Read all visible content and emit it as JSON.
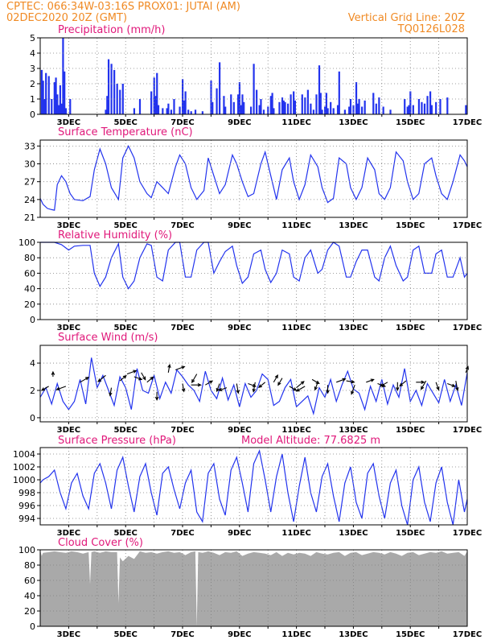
{
  "header": {
    "line1_left": "CPTEC:   066:34W-03:16S   PROX01: JUTAI (AM)",
    "line2_left": "02DEC2020 20Z (GMT)",
    "line1_right": "Vertical Grid Line: 20Z",
    "line2_right": "TQ0126L028"
  },
  "colors": {
    "header": "#f08a24",
    "title": "#e0187a",
    "line": "#2233ee",
    "cloud": "#a9a9a9",
    "grid": "#808080"
  },
  "x_axis": {
    "start_day": 2.0,
    "end_day": 17.0,
    "tick_labels": [
      "3DEC",
      "5DEC",
      "7DEC",
      "9DEC",
      "11DEC",
      "13DEC",
      "15DEC",
      "17DEC"
    ],
    "grid_days": [
      3,
      4,
      5,
      6,
      7,
      8,
      9,
      10,
      11,
      12,
      13,
      14,
      15,
      16
    ]
  },
  "chart_data": [
    {
      "id": "precip",
      "type": "bar",
      "title": "Precipitation (mm/h)",
      "ylim": [
        0,
        5
      ],
      "yticks": [
        "0",
        "1",
        "2",
        "3",
        "4",
        "5"
      ],
      "grid": true,
      "x": [
        2.05,
        2.1,
        2.15,
        2.2,
        2.3,
        2.4,
        2.5,
        2.55,
        2.6,
        2.65,
        2.7,
        2.75,
        2.8,
        2.85,
        2.9,
        3.05,
        4.3,
        4.35,
        4.4,
        4.5,
        4.6,
        4.7,
        4.8,
        4.9,
        5.3,
        5.5,
        5.9,
        6.0,
        6.05,
        6.1,
        6.15,
        6.3,
        6.45,
        6.5,
        6.6,
        6.7,
        6.9,
        7.0,
        7.05,
        7.1,
        7.2,
        7.3,
        7.45,
        7.7,
        8.0,
        8.05,
        8.2,
        8.3,
        8.45,
        8.5,
        8.7,
        8.8,
        8.95,
        9.0,
        9.05,
        9.1,
        9.15,
        9.4,
        9.5,
        9.6,
        9.7,
        9.75,
        9.85,
        10.0,
        10.1,
        10.15,
        10.2,
        10.4,
        10.5,
        10.55,
        10.6,
        10.7,
        10.8,
        10.9,
        10.95,
        11.2,
        11.3,
        11.4,
        11.5,
        11.6,
        11.7,
        11.8,
        11.85,
        11.9,
        12.0,
        12.05,
        12.1,
        12.2,
        12.3,
        12.45,
        12.5,
        12.7,
        12.85,
        12.9,
        13.0,
        13.1,
        13.15,
        13.2,
        13.3,
        13.4,
        13.7,
        13.8,
        13.9,
        14.05,
        14.3,
        14.8,
        14.9,
        14.95,
        15.0,
        15.1,
        15.3,
        15.4,
        15.5,
        15.6,
        15.7,
        15.75,
        15.9,
        16.05,
        16.3,
        16.95
      ],
      "values": [
        2.9,
        2.2,
        1.0,
        2.7,
        2.5,
        1.0,
        2.1,
        2.4,
        1.3,
        0.6,
        1.9,
        0.7,
        5.0,
        2.8,
        0.4,
        1.0,
        0.3,
        1.2,
        3.6,
        3.3,
        2.9,
        2.0,
        1.6,
        2.0,
        0.4,
        1.0,
        1.5,
        2.4,
        1.2,
        2.7,
        0.6,
        0.4,
        0.4,
        0.7,
        0.3,
        1.0,
        0.5,
        2.3,
        0.9,
        1.5,
        0.3,
        0.2,
        0.3,
        0.2,
        2.2,
        0.8,
        1.7,
        3.4,
        1.2,
        0.5,
        1.3,
        0.8,
        1.3,
        2.1,
        0.6,
        1.3,
        0.8,
        0.5,
        3.3,
        1.6,
        0.6,
        1.0,
        0.3,
        0.5,
        1.2,
        1.4,
        0.4,
        0.8,
        1.1,
        0.9,
        0.8,
        0.7,
        1.3,
        1.5,
        0.9,
        1.3,
        1.1,
        1.6,
        0.7,
        0.3,
        1.3,
        3.2,
        1.4,
        0.3,
        0.5,
        1.4,
        0.4,
        0.8,
        0.4,
        0.6,
        2.8,
        0.3,
        0.5,
        1.0,
        0.6,
        2.1,
        0.7,
        1.0,
        0.5,
        0.9,
        1.4,
        0.7,
        1.1,
        0.5,
        0.3,
        1.0,
        0.5,
        0.6,
        1.5,
        0.6,
        1.0,
        0.8,
        0.7,
        1.2,
        1.5,
        0.6,
        0.8,
        1.0,
        1.1,
        0.6
      ]
    },
    {
      "id": "temp",
      "type": "line",
      "title": "Surface Temperature (nC)",
      "ylim": [
        21,
        34
      ],
      "yticks": [
        "21",
        "24",
        "27",
        "30",
        "33"
      ],
      "grid": true,
      "x": [
        2.0,
        2.1,
        2.25,
        2.4,
        2.5,
        2.6,
        2.75,
        2.9,
        3.05,
        3.2,
        3.5,
        3.75,
        3.9,
        4.1,
        4.3,
        4.5,
        4.75,
        4.9,
        5.1,
        5.3,
        5.5,
        5.75,
        5.9,
        6.1,
        6.3,
        6.5,
        6.75,
        6.9,
        7.1,
        7.3,
        7.5,
        7.75,
        7.9,
        8.1,
        8.3,
        8.5,
        8.75,
        8.9,
        9.1,
        9.3,
        9.5,
        9.75,
        9.9,
        10.1,
        10.3,
        10.5,
        10.75,
        10.9,
        11.1,
        11.3,
        11.5,
        11.75,
        11.9,
        12.1,
        12.3,
        12.5,
        12.75,
        12.9,
        13.1,
        13.3,
        13.5,
        13.75,
        13.9,
        14.1,
        14.3,
        14.5,
        14.75,
        14.9,
        15.1,
        15.3,
        15.5,
        15.75,
        15.9,
        16.1,
        16.3,
        16.5,
        16.75,
        16.9,
        17.0
      ],
      "values": [
        24.2,
        23.2,
        22.5,
        22.3,
        22.2,
        26.5,
        28.0,
        27.0,
        25.0,
        24.0,
        23.8,
        24.5,
        29.0,
        32.5,
        30.0,
        26.0,
        24.0,
        31.0,
        33.0,
        31.0,
        27.0,
        25.0,
        24.3,
        27.0,
        26.0,
        25.0,
        29.5,
        31.5,
        30.0,
        26.0,
        24.0,
        25.5,
        31.0,
        28.0,
        25.0,
        26.5,
        31.5,
        30.0,
        27.0,
        24.5,
        25.0,
        30.0,
        32.0,
        28.0,
        24.0,
        29.0,
        31.0,
        27.0,
        24.0,
        26.5,
        31.5,
        29.5,
        26.0,
        23.5,
        24.2,
        31.0,
        30.0,
        26.0,
        24.0,
        26.0,
        31.0,
        29.0,
        25.0,
        24.0,
        26.0,
        32.0,
        30.5,
        27.0,
        24.0,
        25.0,
        30.0,
        31.0,
        28.0,
        25.0,
        24.0,
        27.0,
        31.5,
        30.5,
        29.5
      ]
    },
    {
      "id": "rh",
      "type": "line",
      "title": "Relative Humidity (%)",
      "ylim": [
        0,
        100
      ],
      "yticks": [
        "0",
        "20",
        "40",
        "60",
        "80",
        "100"
      ],
      "grid": true,
      "x": [
        2.0,
        2.3,
        2.5,
        2.75,
        3.0,
        3.2,
        3.5,
        3.75,
        3.9,
        4.1,
        4.3,
        4.5,
        4.75,
        4.9,
        5.1,
        5.3,
        5.5,
        5.75,
        5.9,
        6.1,
        6.3,
        6.5,
        6.75,
        6.9,
        7.1,
        7.3,
        7.5,
        7.75,
        7.9,
        8.1,
        8.3,
        8.5,
        8.75,
        8.9,
        9.1,
        9.3,
        9.5,
        9.75,
        9.9,
        10.1,
        10.3,
        10.5,
        10.75,
        10.9,
        11.1,
        11.3,
        11.5,
        11.75,
        11.9,
        12.1,
        12.3,
        12.5,
        12.75,
        12.9,
        13.1,
        13.3,
        13.5,
        13.75,
        13.9,
        14.1,
        14.3,
        14.5,
        14.75,
        14.9,
        15.1,
        15.3,
        15.5,
        15.75,
        15.9,
        16.1,
        16.3,
        16.5,
        16.75,
        16.9,
        17.0
      ],
      "values": [
        100,
        100,
        100,
        97,
        90,
        95,
        96,
        96,
        60,
        43,
        55,
        80,
        98,
        55,
        40,
        50,
        80,
        98,
        96,
        55,
        50,
        90,
        100,
        100,
        55,
        55,
        90,
        100,
        100,
        60,
        75,
        88,
        95,
        70,
        47,
        55,
        85,
        90,
        65,
        48,
        60,
        90,
        85,
        55,
        50,
        80,
        90,
        60,
        65,
        90,
        100,
        95,
        55,
        55,
        75,
        90,
        90,
        55,
        50,
        80,
        95,
        70,
        50,
        55,
        90,
        95,
        60,
        60,
        85,
        90,
        55,
        55,
        80,
        55,
        60
      ]
    },
    {
      "id": "wind",
      "type": "line",
      "title": "Surface Wind (m/s)",
      "ylim": [
        -0.3,
        5.3
      ],
      "yticks": [
        "0",
        "2",
        "4"
      ],
      "grid": true,
      "x": [
        2.0,
        2.2,
        2.4,
        2.6,
        2.8,
        3.0,
        3.2,
        3.4,
        3.6,
        3.8,
        4.0,
        4.2,
        4.4,
        4.6,
        4.8,
        5.0,
        5.2,
        5.4,
        5.6,
        5.8,
        6.0,
        6.2,
        6.4,
        6.6,
        6.8,
        7.0,
        7.2,
        7.4,
        7.6,
        7.8,
        8.0,
        8.2,
        8.4,
        8.6,
        8.8,
        9.0,
        9.2,
        9.4,
        9.6,
        9.8,
        10.0,
        10.2,
        10.4,
        10.6,
        10.8,
        11.0,
        11.2,
        11.4,
        11.6,
        11.8,
        12.0,
        12.2,
        12.4,
        12.6,
        12.8,
        13.0,
        13.2,
        13.4,
        13.6,
        13.8,
        14.0,
        14.2,
        14.4,
        14.6,
        14.8,
        15.0,
        15.2,
        15.4,
        15.6,
        15.8,
        16.0,
        16.2,
        16.4,
        16.6,
        16.8,
        17.0
      ],
      "values": [
        1.5,
        2.2,
        1.0,
        2.5,
        1.2,
        0.6,
        1.2,
        2.8,
        1.0,
        4.4,
        2.2,
        3.1,
        2.0,
        0.9,
        3.0,
        2.2,
        0.6,
        3.6,
        2.0,
        1.8,
        3.1,
        1.4,
        2.6,
        1.8,
        3.5,
        3.0,
        2.4,
        2.0,
        1.2,
        3.4,
        2.0,
        1.4,
        2.9,
        1.3,
        2.4,
        0.8,
        2.5,
        1.5,
        2.0,
        3.2,
        2.8,
        0.9,
        1.2,
        2.2,
        2.8,
        0.8,
        1.2,
        1.6,
        0.3,
        2.2,
        1.5,
        2.8,
        1.2,
        2.4,
        3.4,
        2.1,
        1.8,
        0.6,
        2.3,
        1.2,
        2.8,
        1.0,
        2.4,
        1.5,
        3.6,
        1.2,
        2.0,
        0.9,
        2.5,
        1.8,
        1.1,
        2.8,
        1.2,
        2.4,
        0.9,
        3.3
      ]
    },
    {
      "id": "pressure",
      "type": "line",
      "title": "Surface Pressure (hPa)",
      "annotation": "Model Altitude: 77.6825 m",
      "ylim": [
        993,
        1005
      ],
      "yticks": [
        "994",
        "996",
        "998",
        "1000",
        "1002",
        "1004"
      ],
      "grid": true,
      "x": [
        2.0,
        2.1,
        2.3,
        2.5,
        2.7,
        2.9,
        3.1,
        3.3,
        3.5,
        3.7,
        3.9,
        4.1,
        4.3,
        4.5,
        4.7,
        4.9,
        5.1,
        5.3,
        5.5,
        5.7,
        5.9,
        6.1,
        6.3,
        6.5,
        6.7,
        6.9,
        7.1,
        7.3,
        7.5,
        7.7,
        7.9,
        8.1,
        8.3,
        8.5,
        8.7,
        8.9,
        9.1,
        9.3,
        9.5,
        9.7,
        9.9,
        10.1,
        10.3,
        10.5,
        10.7,
        10.9,
        11.1,
        11.3,
        11.5,
        11.7,
        11.9,
        12.1,
        12.3,
        12.5,
        12.7,
        12.9,
        13.1,
        13.3,
        13.5,
        13.7,
        13.9,
        14.1,
        14.3,
        14.5,
        14.7,
        14.9,
        15.1,
        15.3,
        15.5,
        15.7,
        15.9,
        16.1,
        16.3,
        16.5,
        16.7,
        16.9,
        17.0
      ],
      "values": [
        999.5,
        1000.0,
        1000.5,
        1001.5,
        998.0,
        995.5,
        999.5,
        1001.0,
        997.5,
        995.5,
        1001.0,
        1002.5,
        999.5,
        995.5,
        1001.5,
        1003.5,
        999.0,
        995.0,
        1000.5,
        1002.5,
        998.0,
        994.5,
        1001.0,
        1002.0,
        998.5,
        995.5,
        999.5,
        1001.5,
        995.0,
        993.5,
        1001.0,
        1002.5,
        997.0,
        994.5,
        1001.5,
        1003.5,
        999.5,
        995.0,
        1002.5,
        1004.5,
        1000.0,
        995.0,
        1000.5,
        1004.0,
        998.0,
        993.5,
        999.0,
        1003.5,
        998.0,
        995.0,
        1000.5,
        1002.5,
        997.5,
        993.5,
        999.5,
        1002.0,
        996.5,
        994.0,
        1001.0,
        1002.5,
        997.5,
        994.0,
        999.5,
        1001.5,
        996.0,
        993.0,
        1000.0,
        1002.0,
        996.5,
        993.5,
        999.5,
        1002.0,
        996.5,
        993.0,
        1000.0,
        995.0,
        997.0
      ]
    },
    {
      "id": "cloud",
      "type": "area",
      "title": "Cloud Cover (%)",
      "ylim": [
        0,
        100
      ],
      "yticks": [
        "0",
        "20",
        "40",
        "60",
        "80",
        "100"
      ],
      "grid": true,
      "x": [
        2.0,
        2.05,
        2.1,
        2.3,
        2.5,
        2.7,
        2.9,
        3.1,
        3.3,
        3.5,
        3.7,
        3.75,
        3.8,
        3.9,
        4.1,
        4.3,
        4.5,
        4.7,
        4.75,
        4.8,
        4.9,
        5.1,
        5.3,
        5.5,
        5.7,
        5.9,
        6.1,
        6.3,
        6.5,
        6.7,
        6.9,
        7.1,
        7.3,
        7.45,
        7.5,
        7.55,
        7.7,
        7.9,
        8.1,
        8.3,
        8.5,
        8.7,
        8.9,
        9.1,
        9.3,
        9.5,
        9.7,
        9.9,
        10.1,
        10.3,
        10.5,
        10.7,
        10.9,
        11.1,
        11.3,
        11.5,
        11.7,
        11.9,
        12.1,
        12.3,
        12.5,
        12.7,
        12.9,
        13.1,
        13.3,
        13.5,
        13.7,
        13.9,
        14.1,
        14.3,
        14.5,
        14.7,
        14.9,
        15.1,
        15.3,
        15.5,
        15.7,
        15.9,
        16.1,
        16.3,
        16.5,
        16.7,
        16.9,
        17.0
      ],
      "values": [
        100,
        92,
        96,
        97,
        98,
        97,
        96,
        98,
        97,
        95,
        97,
        55,
        97,
        98,
        96,
        98,
        97,
        97,
        30,
        90,
        85,
        92,
        88,
        98,
        96,
        97,
        95,
        97,
        98,
        96,
        97,
        93,
        97,
        98,
        0,
        97,
        96,
        98,
        96,
        93,
        97,
        96,
        98,
        92,
        95,
        97,
        96,
        95,
        93,
        97,
        92,
        96,
        94,
        96,
        95,
        92,
        97,
        95,
        94,
        96,
        97,
        92,
        96,
        97,
        93,
        95,
        97,
        96,
        94,
        97,
        95,
        92,
        96,
        97,
        93,
        95,
        97,
        96,
        98,
        95,
        96,
        97,
        92,
        98
      ]
    }
  ],
  "wind_arrows": {
    "x": [
      2.3,
      2.45,
      2.9,
      3.4,
      4.3,
      4.5,
      4.8,
      5.05,
      5.3,
      5.55,
      5.75,
      6.1,
      6.5,
      6.75,
      7.0,
      7.3,
      7.5,
      7.8,
      8.3,
      8.55,
      8.9,
      9.3,
      9.55,
      9.9,
      10.2,
      10.5,
      10.75,
      11.0,
      11.3,
      11.55,
      11.75,
      12.1,
      12.4,
      12.75,
      13.05,
      13.45,
      13.85,
      14.2,
      14.55,
      14.85,
      15.2,
      15.55,
      15.9,
      16.3,
      16.6,
      16.95
    ],
    "y": [
      2.3,
      3.0,
      2.3,
      2.6,
      3.1,
      2.2,
      2.7,
      3.2,
      3.0,
      3.3,
      2.6,
      1.9,
      3.3,
      3.5,
      2.5,
      2.4,
      3.2,
      2.4,
      2.5,
      2.2,
      2.5,
      2.5,
      2.6,
      2.6,
      2.6,
      2.9,
      2.3,
      2.2,
      2.3,
      2.8,
      2.6,
      2.4,
      2.6,
      2.7,
      2.4,
      2.6,
      2.5,
      2.6,
      2.6,
      2.7,
      2.6,
      2.7,
      2.6,
      2.5,
      2.7,
      3.3
    ],
    "angle": [
      210,
      90,
      -160,
      30,
      -140,
      -100,
      40,
      20,
      -20,
      -60,
      40,
      -90,
      80,
      20,
      -80,
      0,
      -120,
      30,
      -110,
      -160,
      -80,
      -20,
      -100,
      -140,
      60,
      -120,
      -30,
      40,
      -150,
      -30,
      -110,
      -90,
      20,
      -10,
      -110,
      20,
      -20,
      -150,
      -90,
      -140,
      0,
      -120,
      -70,
      -20,
      -80,
      70
    ],
    "len": [
      10,
      6,
      12,
      12,
      12,
      10,
      10,
      12,
      10,
      10,
      10,
      10,
      10,
      12,
      10,
      12,
      12,
      10,
      10,
      10,
      12,
      10,
      12,
      10,
      10,
      10,
      10,
      12,
      12,
      10,
      10,
      10,
      12,
      10,
      12,
      10,
      10,
      10,
      10,
      10,
      10,
      12,
      10,
      10,
      12,
      8
    ]
  }
}
